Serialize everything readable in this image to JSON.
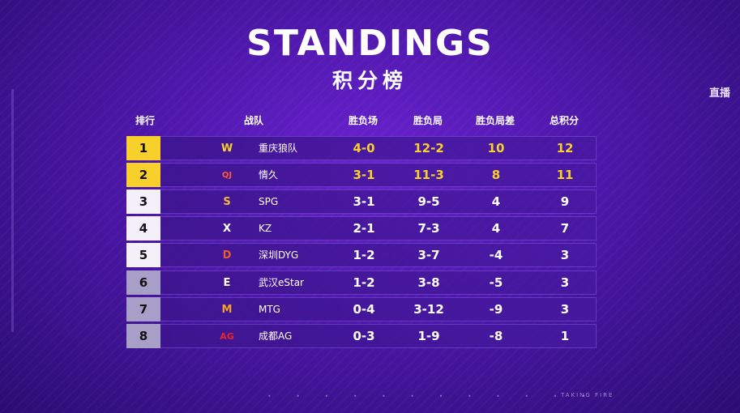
{
  "title_en": "STANDINGS",
  "title_cn": "积分榜",
  "live_badge": "直播",
  "headers": {
    "rank": "排行",
    "team": "战队",
    "series": "胜负场",
    "games": "胜负局",
    "diff": "胜负局差",
    "points": "总积分"
  },
  "rows": [
    {
      "rank": "1",
      "team": "重庆狼队",
      "series": "4-0",
      "games": "12-2",
      "diff": "10",
      "points": "12",
      "logo_icon": "wolves-logo",
      "logo_text": "W"
    },
    {
      "rank": "2",
      "team": "情久",
      "series": "3-1",
      "games": "11-3",
      "diff": "8",
      "points": "11",
      "logo_icon": "qingjiu-logo",
      "logo_text": "QJ"
    },
    {
      "rank": "3",
      "team": "SPG",
      "series": "3-1",
      "games": "9-5",
      "diff": "4",
      "points": "9",
      "logo_icon": "spg-logo",
      "logo_text": "S"
    },
    {
      "rank": "4",
      "team": "KZ",
      "series": "2-1",
      "games": "7-3",
      "diff": "4",
      "points": "7",
      "logo_icon": "kz-logo",
      "logo_text": "X"
    },
    {
      "rank": "5",
      "team": "深圳DYG",
      "series": "1-2",
      "games": "3-7",
      "diff": "-4",
      "points": "3",
      "logo_icon": "dyg-logo",
      "logo_text": "D"
    },
    {
      "rank": "6",
      "team": "武汉eStar",
      "series": "1-2",
      "games": "3-8",
      "diff": "-5",
      "points": "3",
      "logo_icon": "estar-logo",
      "logo_text": "E"
    },
    {
      "rank": "7",
      "team": "MTG",
      "series": "0-4",
      "games": "3-12",
      "diff": "-9",
      "points": "3",
      "logo_icon": "mtg-logo",
      "logo_text": "M"
    },
    {
      "rank": "8",
      "team": "成都AG",
      "series": "0-3",
      "games": "1-9",
      "diff": "-8",
      "points": "1",
      "logo_icon": "ag-logo",
      "logo_text": "AG"
    }
  ],
  "footer_brand": "TAKING FIRE",
  "colors": {
    "gold": "#f7d02c",
    "row_bg": "#3c148c",
    "background": "#4c17a8"
  }
}
